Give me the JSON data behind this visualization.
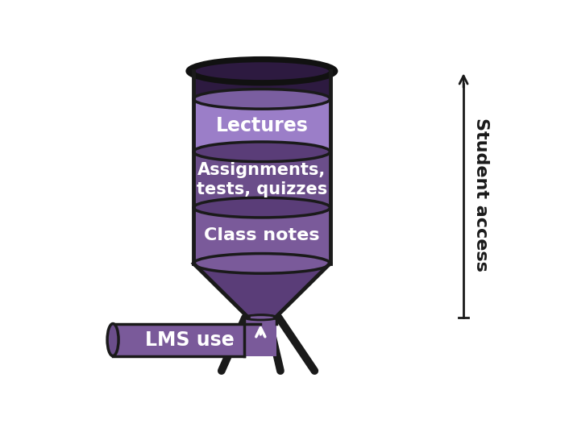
{
  "bg_color": "#ffffff",
  "outline_color": "#1a1a1a",
  "dark_top_color": "#2d1a40",
  "lectures_color": "#9b7ec8",
  "lectures_top_color": "#7a5ea0",
  "assignments_color": "#6b4e8a",
  "assignments_top_color": "#5a3d78",
  "classnotes_color": "#7a5a9a",
  "classnotes_top_color": "#5a3d78",
  "funnel_color": "#5a3d78",
  "pipe_color": "#7a5a9a",
  "pipe_cap_color": "#6b4e8a",
  "text_color": "#ffffff",
  "arrow_color": "#1a1a1a",
  "label_student_access": "Student access",
  "label_lectures": "Lectures",
  "label_assignments": "Assignments,\ntests, quizzes",
  "label_classnotes": "Class notes",
  "label_lms": "LMS use",
  "font_size_labels": 15
}
